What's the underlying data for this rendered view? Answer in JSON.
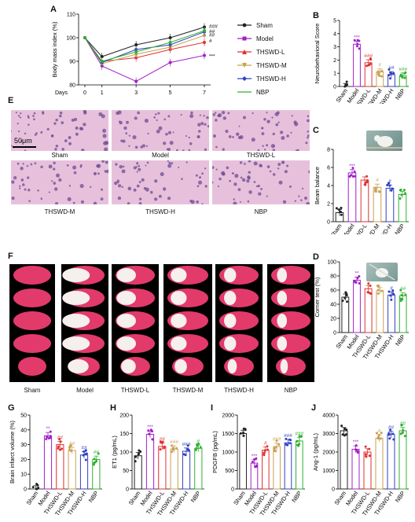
{
  "panel_letters": {
    "A": "A",
    "B": "B",
    "C": "C",
    "D": "D",
    "E": "E",
    "F": "F",
    "G": "G",
    "H": "H",
    "I": "I",
    "J": "J"
  },
  "groups": [
    "Sham",
    "Model",
    "THSWD-L",
    "THSWD-M",
    "THSWD-H",
    "NBP"
  ],
  "colors": {
    "Sham": "#222222",
    "Model": "#a020c8",
    "THSWD-L": "#e03030",
    "THSWD-M": "#c8a050",
    "THSWD-H": "#3040c0",
    "NBP": "#30b030"
  },
  "he_captions": [
    "Sham",
    "Model",
    "THSWD-L",
    "THSWD-M",
    "THSWD-H",
    "NBP"
  ],
  "scale_bar": "50μm",
  "brain_captions": [
    "Sham",
    "Model",
    "THSWD-L",
    "THSWD-M",
    "THSWD-H",
    "NBP"
  ],
  "chart_data": [
    {
      "id": "A",
      "type": "line",
      "xlabel": "Days",
      "ylabel": "Body mass index (%)",
      "x": [
        0,
        1,
        3,
        5,
        7
      ],
      "ylim": [
        80,
        110
      ],
      "yticks": [
        80,
        90,
        100,
        110
      ],
      "series": [
        {
          "name": "Sham",
          "values": [
            100,
            92,
            97,
            100,
            104.5
          ]
        },
        {
          "name": "Model",
          "values": [
            100,
            88,
            81.5,
            89.5,
            92.5
          ]
        },
        {
          "name": "THSWD-L",
          "values": [
            100,
            90,
            91.5,
            95,
            98
          ]
        },
        {
          "name": "THSWD-M",
          "values": [
            100,
            89,
            93,
            96,
            101
          ]
        },
        {
          "name": "THSWD-H",
          "values": [
            100,
            89.5,
            95,
            97,
            102.5
          ]
        },
        {
          "name": "NBP",
          "values": [
            100,
            90,
            94,
            98,
            103
          ]
        }
      ],
      "annotations": [
        "###",
        "##",
        "##",
        "#",
        "***"
      ]
    },
    {
      "id": "B",
      "type": "bar",
      "ylabel": "Neurobehavioral Score",
      "categories": [
        "Sham",
        "Model",
        "THSWD-L",
        "THSWD-M",
        "THSWD-H",
        "NBP"
      ],
      "values": [
        0,
        3.2,
        1.8,
        1.1,
        0.9,
        0.8
      ],
      "ylim": [
        0,
        5
      ],
      "yticks": [
        0,
        1,
        2,
        3,
        4,
        5
      ],
      "stars": [
        "",
        "***",
        "###",
        "#",
        "##",
        "###"
      ]
    },
    {
      "id": "C",
      "type": "bar",
      "ylabel": "Beam balance",
      "categories": [
        "Sham",
        "Model",
        "THSWD-L",
        "THSWD-M",
        "THSWD-H",
        "NBP"
      ],
      "values": [
        1,
        5.4,
        4.6,
        3.8,
        3.7,
        3.0
      ],
      "ylim": [
        0,
        8
      ],
      "yticks": [
        0,
        2,
        4,
        6,
        8
      ],
      "stars": [
        "",
        "***",
        "",
        "#",
        "#",
        ""
      ]
    },
    {
      "id": "D",
      "type": "bar",
      "ylabel": "Corner test (%)",
      "categories": [
        "Sham",
        "Model",
        "THSWD-L",
        "THSWD-M",
        "THSWD-H",
        "NBP"
      ],
      "values": [
        50,
        74,
        62,
        59,
        53,
        52
      ],
      "ylim": [
        0,
        100
      ],
      "yticks": [
        0,
        20,
        40,
        60,
        80,
        100
      ],
      "stars": [
        "",
        "**",
        "",
        "",
        "#",
        "##"
      ]
    },
    {
      "id": "G",
      "type": "bar",
      "ylabel": "Brain infarct volume (%)",
      "categories": [
        "Sham",
        "Model",
        "THSWD-L",
        "THSWD-M",
        "THSWD-H",
        "NBP"
      ],
      "values": [
        0,
        36,
        30,
        26,
        23,
        20
      ],
      "ylim": [
        0,
        50
      ],
      "yticks": [
        0,
        10,
        20,
        30,
        40,
        50
      ],
      "stars": [
        "",
        "**",
        "##",
        "##",
        "##",
        "##"
      ]
    },
    {
      "id": "H",
      "type": "bar",
      "ylabel": "ET1 (pg/mL)",
      "categories": [
        "Sham",
        "Model",
        "THSWD-L",
        "THSWD-M",
        "THSWD-H",
        "NBP"
      ],
      "values": [
        90,
        148,
        115,
        108,
        102,
        110
      ],
      "ylim": [
        0,
        200
      ],
      "yticks": [
        0,
        50,
        100,
        150,
        200
      ],
      "stars": [
        "",
        "***",
        "##",
        "###",
        "###",
        "#"
      ]
    },
    {
      "id": "I",
      "type": "bar",
      "ylabel": "PDGFB (pg/mL)",
      "categories": [
        "Sham",
        "Model",
        "THSWD-L",
        "THSWD-M",
        "THSWD-H",
        "NBP"
      ],
      "values": [
        1500,
        700,
        1050,
        1150,
        1250,
        1300
      ],
      "ylim": [
        0,
        2000
      ],
      "yticks": [
        0,
        500,
        1000,
        1500,
        2000
      ],
      "stars": [
        "",
        "***",
        "#",
        "###",
        "###",
        "###"
      ]
    },
    {
      "id": "J",
      "type": "bar",
      "ylabel": "Ang-1 (pg/mL)",
      "categories": [
        "Sham",
        "Model",
        "THSWD-L",
        "THSWD-M",
        "THSWD-H",
        "NBP"
      ],
      "values": [
        3150,
        2150,
        2000,
        2750,
        2950,
        3150
      ],
      "ylim": [
        0,
        4000
      ],
      "yticks": [
        0,
        1000,
        2000,
        3000,
        4000
      ],
      "stars": [
        "",
        "***",
        "",
        "#",
        "##",
        "##"
      ]
    }
  ]
}
